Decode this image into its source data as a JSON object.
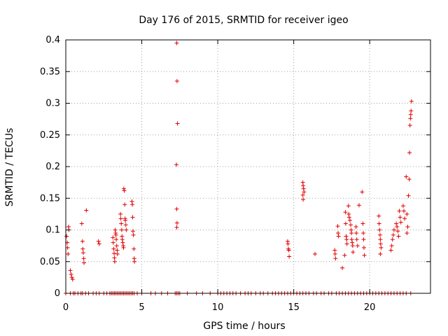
{
  "chart_data": {
    "type": "scatter",
    "title": "Day 176 of 2015, SRMTID for receiver igeo",
    "xlabel": "GPS time / hours",
    "ylabel": "SRMTID / TECUs",
    "xlim": [
      0,
      24
    ],
    "ylim": [
      0,
      0.4
    ],
    "xticks": [
      0,
      5,
      10,
      15,
      20
    ],
    "yticks": [
      0,
      0.05,
      0.1,
      0.15,
      0.2,
      0.25,
      0.3,
      0.35,
      0.4
    ],
    "xtick_labels": [
      "0",
      "5",
      "10",
      "15",
      "20"
    ],
    "ytick_labels": [
      "0",
      "0.05",
      "0.1",
      "0.15",
      "0.2",
      "0.25",
      "0.3",
      "0.35",
      "0.4"
    ],
    "grid": true,
    "marker": "plus",
    "color": "#e00000",
    "series": [
      {
        "name": "SRMTID",
        "points": [
          [
            0.05,
            0.09
          ],
          [
            0.1,
            0.08
          ],
          [
            0.12,
            0.072
          ],
          [
            0.15,
            0.062
          ],
          [
            0.18,
            0.105
          ],
          [
            0.2,
            0.1
          ],
          [
            0.3,
            0.036
          ],
          [
            0.35,
            0.03
          ],
          [
            0.4,
            0.025
          ],
          [
            0.45,
            0.022
          ],
          [
            1.05,
            0.11
          ],
          [
            1.1,
            0.082
          ],
          [
            1.12,
            0.07
          ],
          [
            1.15,
            0.064
          ],
          [
            1.18,
            0.055
          ],
          [
            1.2,
            0.048
          ],
          [
            1.35,
            0.131
          ],
          [
            2.15,
            0.082
          ],
          [
            2.2,
            0.078
          ],
          [
            3.1,
            0.088
          ],
          [
            3.12,
            0.08
          ],
          [
            3.15,
            0.07
          ],
          [
            3.18,
            0.063
          ],
          [
            3.2,
            0.056
          ],
          [
            3.22,
            0.05
          ],
          [
            3.25,
            0.1
          ],
          [
            3.28,
            0.095
          ],
          [
            3.3,
            0.092
          ],
          [
            3.32,
            0.085
          ],
          [
            3.35,
            0.075
          ],
          [
            3.38,
            0.068
          ],
          [
            3.4,
            0.062
          ],
          [
            3.6,
            0.125
          ],
          [
            3.62,
            0.118
          ],
          [
            3.65,
            0.11
          ],
          [
            3.68,
            0.1
          ],
          [
            3.7,
            0.09
          ],
          [
            3.72,
            0.085
          ],
          [
            3.75,
            0.08
          ],
          [
            3.78,
            0.075
          ],
          [
            3.8,
            0.072
          ],
          [
            3.82,
            0.165
          ],
          [
            3.85,
            0.162
          ],
          [
            3.88,
            0.14
          ],
          [
            3.9,
            0.118
          ],
          [
            3.92,
            0.115
          ],
          [
            3.95,
            0.108
          ],
          [
            3.98,
            0.1
          ],
          [
            4.35,
            0.145
          ],
          [
            4.38,
            0.14
          ],
          [
            4.4,
            0.12
          ],
          [
            4.42,
            0.098
          ],
          [
            4.45,
            0.092
          ],
          [
            4.48,
            0.07
          ],
          [
            4.5,
            0.055
          ],
          [
            4.52,
            0.05
          ],
          [
            7.3,
            0.395
          ],
          [
            7.32,
            0.335
          ],
          [
            7.35,
            0.268
          ],
          [
            7.28,
            0.203
          ],
          [
            7.3,
            0.133
          ],
          [
            7.32,
            0.111
          ],
          [
            7.3,
            0.104
          ],
          [
            14.6,
            0.082
          ],
          [
            14.62,
            0.078
          ],
          [
            14.65,
            0.07
          ],
          [
            14.68,
            0.068
          ],
          [
            14.7,
            0.058
          ],
          [
            15.6,
            0.175
          ],
          [
            15.62,
            0.17
          ],
          [
            15.65,
            0.165
          ],
          [
            15.68,
            0.16
          ],
          [
            15.6,
            0.155
          ],
          [
            15.62,
            0.148
          ],
          [
            16.4,
            0.062
          ],
          [
            17.7,
            0.068
          ],
          [
            17.72,
            0.062
          ],
          [
            17.75,
            0.055
          ],
          [
            17.9,
            0.106
          ],
          [
            17.92,
            0.095
          ],
          [
            17.95,
            0.09
          ],
          [
            18.2,
            0.04
          ],
          [
            18.35,
            0.06
          ],
          [
            18.4,
            0.128
          ],
          [
            18.42,
            0.11
          ],
          [
            18.45,
            0.09
          ],
          [
            18.48,
            0.085
          ],
          [
            18.5,
            0.078
          ],
          [
            18.6,
            0.138
          ],
          [
            18.62,
            0.125
          ],
          [
            18.65,
            0.12
          ],
          [
            18.7,
            0.115
          ],
          [
            18.75,
            0.108
          ],
          [
            18.78,
            0.1
          ],
          [
            18.8,
            0.095
          ],
          [
            18.82,
            0.085
          ],
          [
            18.85,
            0.08
          ],
          [
            18.88,
            0.075
          ],
          [
            18.9,
            0.065
          ],
          [
            19.1,
            0.105
          ],
          [
            19.12,
            0.095
          ],
          [
            19.15,
            0.085
          ],
          [
            19.2,
            0.075
          ],
          [
            19.3,
            0.139
          ],
          [
            19.5,
            0.16
          ],
          [
            19.55,
            0.11
          ],
          [
            19.58,
            0.095
          ],
          [
            19.6,
            0.085
          ],
          [
            19.62,
            0.072
          ],
          [
            19.65,
            0.06
          ],
          [
            20.6,
            0.122
          ],
          [
            20.62,
            0.11
          ],
          [
            20.65,
            0.1
          ],
          [
            20.68,
            0.092
          ],
          [
            20.7,
            0.085
          ],
          [
            20.72,
            0.078
          ],
          [
            20.75,
            0.072
          ],
          [
            20.7,
            0.062
          ],
          [
            21.4,
            0.068
          ],
          [
            21.45,
            0.075
          ],
          [
            21.5,
            0.085
          ],
          [
            21.55,
            0.092
          ],
          [
            21.6,
            0.1
          ],
          [
            21.75,
            0.11
          ],
          [
            21.8,
            0.105
          ],
          [
            21.85,
            0.098
          ],
          [
            21.9,
            0.09
          ],
          [
            21.95,
            0.13
          ],
          [
            22.0,
            0.12
          ],
          [
            22.05,
            0.112
          ],
          [
            22.2,
            0.138
          ],
          [
            22.25,
            0.13
          ],
          [
            22.3,
            0.118
          ],
          [
            22.4,
            0.184
          ],
          [
            22.45,
            0.125
          ],
          [
            22.5,
            0.105
          ],
          [
            22.45,
            0.095
          ],
          [
            22.55,
            0.154
          ],
          [
            22.6,
            0.18
          ],
          [
            22.62,
            0.222
          ],
          [
            22.65,
            0.265
          ],
          [
            22.68,
            0.276
          ],
          [
            22.7,
            0.282
          ],
          [
            22.72,
            0.288
          ],
          [
            22.75,
            0.303
          ]
        ],
        "zero_x": [
          0.0,
          0.3,
          0.5,
          0.6,
          0.8,
          1.0,
          1.1,
          1.3,
          1.5,
          1.8,
          2.0,
          2.2,
          2.5,
          2.7,
          2.9,
          3.0,
          3.1,
          3.2,
          3.3,
          3.4,
          3.5,
          3.6,
          3.7,
          3.8,
          3.9,
          4.0,
          4.1,
          4.2,
          4.3,
          4.4,
          4.5,
          4.7,
          5.0,
          5.6,
          5.9,
          6.3,
          6.7,
          7.2,
          7.3,
          7.4,
          7.5,
          8.0,
          8.6,
          9.0,
          9.5,
          10.0,
          10.2,
          10.4,
          10.6,
          10.8,
          11.0,
          11.2,
          11.5,
          11.8,
          12.0,
          12.2,
          12.5,
          12.8,
          13.0,
          13.3,
          13.6,
          13.8,
          14.0,
          14.2,
          14.4,
          14.6,
          14.8,
          15.0,
          15.2,
          15.4,
          15.6,
          15.8,
          16.0,
          16.3,
          16.5,
          16.8,
          17.0,
          17.3,
          17.5,
          17.8,
          18.0,
          18.2,
          18.4,
          18.6,
          18.8,
          19.0,
          19.2,
          19.4,
          19.6,
          19.8,
          20.0,
          20.2,
          20.4,
          20.6,
          20.8,
          21.0,
          21.2,
          21.4,
          21.6,
          21.8,
          22.0,
          22.2,
          22.4,
          22.7
        ]
      }
    ]
  }
}
